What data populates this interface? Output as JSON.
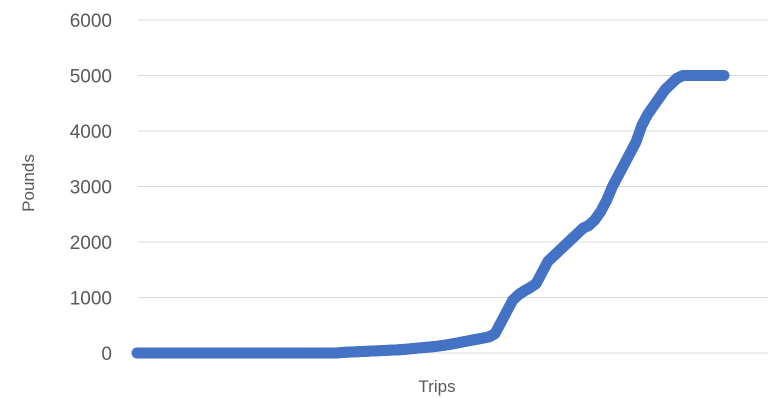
{
  "chart_data": {
    "type": "scatter",
    "title": "",
    "xlabel": "Trips",
    "ylabel": "Pounds",
    "ylim": [
      0,
      6000
    ],
    "yticks": [
      0,
      1000,
      2000,
      3000,
      4000,
      5000,
      6000
    ],
    "xlim": [
      0,
      100
    ],
    "grid": "horizontal",
    "legend": "none",
    "marker_color": "#4472C4",
    "grid_color": "#D9D9D9",
    "series": [
      {
        "x": [
          0,
          1,
          2,
          3,
          4,
          5,
          6,
          7,
          8,
          9,
          10,
          11,
          12,
          13,
          14,
          15,
          16,
          17,
          18,
          19,
          20,
          21,
          22,
          23,
          24,
          25,
          26,
          27,
          28,
          29,
          30,
          31,
          32,
          33,
          34,
          35,
          36,
          37,
          38,
          39,
          40,
          41,
          42,
          43,
          44,
          45,
          46,
          47,
          48,
          49,
          50,
          51,
          52,
          53,
          54,
          55,
          56,
          57,
          58,
          59,
          60,
          61,
          62,
          63,
          64,
          65,
          66,
          67,
          68,
          69,
          70,
          71,
          72,
          73,
          74,
          75,
          76,
          77,
          78,
          79,
          80,
          81,
          82,
          83,
          84,
          85,
          86,
          87,
          88,
          89,
          90,
          91,
          92,
          93,
          94,
          95,
          96,
          97,
          98,
          99,
          100
        ],
        "y": [
          0,
          0,
          0,
          0,
          0,
          0,
          0,
          0,
          0,
          0,
          0,
          0,
          0,
          0,
          0,
          0,
          0,
          0,
          0,
          0,
          0,
          0,
          0,
          0,
          0,
          0,
          0,
          0,
          0,
          0,
          0,
          0,
          0,
          0,
          0,
          10,
          15,
          20,
          25,
          30,
          35,
          40,
          45,
          50,
          55,
          60,
          70,
          80,
          90,
          100,
          110,
          120,
          135,
          150,
          170,
          190,
          210,
          230,
          250,
          270,
          290,
          350,
          550,
          750,
          950,
          1050,
          1120,
          1180,
          1250,
          1450,
          1650,
          1750,
          1850,
          1950,
          2050,
          2150,
          2250,
          2300,
          2400,
          2550,
          2750,
          3000,
          3200,
          3400,
          3600,
          3800,
          4100,
          4300,
          4450,
          4600,
          4750,
          4850,
          4950,
          5000,
          5000,
          5000,
          5000,
          5000,
          5000,
          5000,
          5000
        ]
      }
    ]
  }
}
